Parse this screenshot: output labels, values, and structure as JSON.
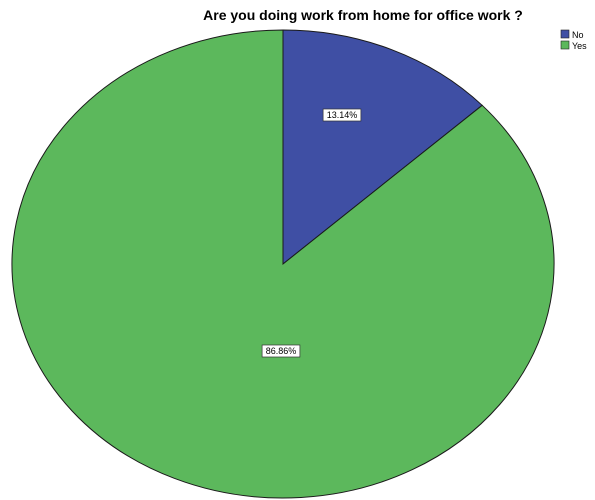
{
  "chart_data": {
    "type": "pie",
    "title": "Are you doing work from home for office work ?",
    "categories": [
      "No",
      "Yes"
    ],
    "values": [
      13.14,
      86.86
    ],
    "data_labels": [
      "13.14%",
      "86.86%"
    ],
    "colors": [
      "#3f4fa4",
      "#5cb85c"
    ],
    "legend_position": "top-right",
    "start_angle": "12 o'clock",
    "direction": "clockwise"
  }
}
